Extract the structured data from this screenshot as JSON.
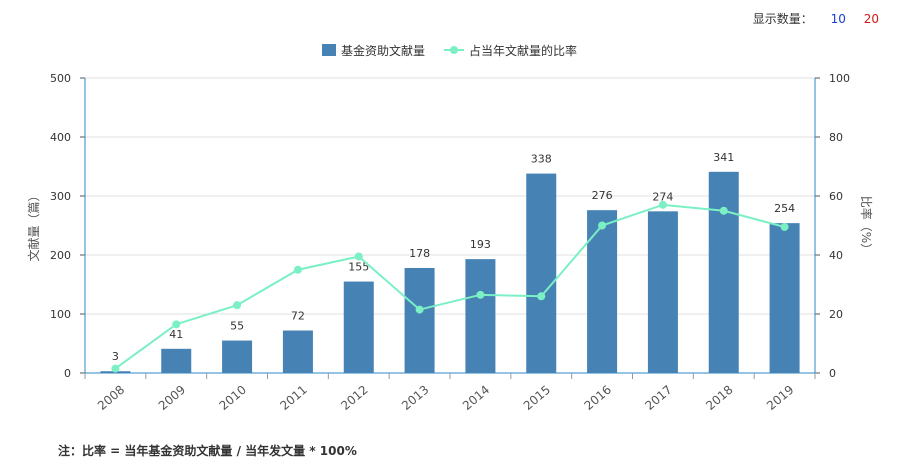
{
  "display_count": {
    "label": "显示数量：",
    "options": [
      "10",
      "20"
    ]
  },
  "chart_data": {
    "type": "bar",
    "categories": [
      "2008",
      "2009",
      "2010",
      "2011",
      "2012",
      "2013",
      "2014",
      "2015",
      "2016",
      "2017",
      "2018",
      "2019"
    ],
    "series": [
      {
        "name": "基金资助文献量",
        "kind": "bar",
        "axis": "left",
        "color": "#4682b4",
        "values": [
          3,
          41,
          55,
          72,
          155,
          178,
          193,
          338,
          276,
          274,
          341,
          254
        ]
      },
      {
        "name": "占当年文献量的比率",
        "kind": "line",
        "axis": "right",
        "color": "#7af0c4",
        "values": [
          1.5,
          16.5,
          23,
          35,
          39.5,
          21.5,
          26.5,
          26,
          50,
          57,
          55,
          49.5
        ]
      }
    ],
    "ylabel": "文献量（篇）",
    "y2label": "比率（%）",
    "ylim": [
      0,
      500
    ],
    "y2lim": [
      0,
      100
    ],
    "yticks": [
      0,
      100,
      200,
      300,
      400,
      500
    ],
    "y2ticks": [
      0,
      20,
      40,
      60,
      80,
      100
    ],
    "grid": true,
    "legend": "top-center"
  },
  "footnote": "注：比率 = 当年基金资助文献量 / 当年发文量 * 100%"
}
